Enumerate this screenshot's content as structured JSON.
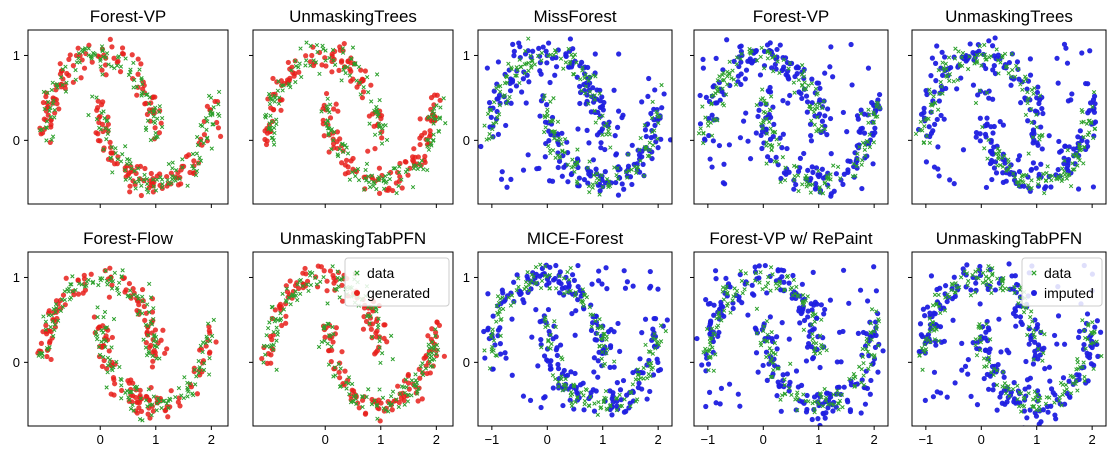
{
  "chart_data": [
    {
      "type": "scatter",
      "title": "Forest-VP",
      "group": "generation",
      "row": 0,
      "col": 0,
      "series": [
        {
          "name": "data",
          "color": "#2ca02c",
          "marker": "x"
        },
        {
          "name": "generated",
          "color": "#e8201b",
          "marker": "o"
        }
      ],
      "xlim": [
        -1.3,
        2.3
      ],
      "ylim": [
        -0.75,
        1.3
      ],
      "xticks": [
        0,
        1,
        2
      ],
      "yticks": [
        0,
        1
      ],
      "show_xticklabels": false,
      "show_yticklabels": true
    },
    {
      "type": "scatter",
      "title": "UnmaskingTrees",
      "group": "generation",
      "row": 0,
      "col": 1,
      "series": [
        {
          "name": "data",
          "color": "#2ca02c",
          "marker": "x"
        },
        {
          "name": "generated",
          "color": "#e8201b",
          "marker": "o"
        }
      ],
      "xlim": [
        -1.3,
        2.3
      ],
      "ylim": [
        -0.75,
        1.3
      ],
      "xticks": [
        0,
        1,
        2
      ],
      "yticks": [
        0,
        1
      ],
      "show_xticklabels": false,
      "show_yticklabels": false
    },
    {
      "type": "scatter",
      "title": "Forest-Flow",
      "group": "generation",
      "row": 1,
      "col": 0,
      "series": [
        {
          "name": "data",
          "color": "#2ca02c",
          "marker": "x"
        },
        {
          "name": "generated",
          "color": "#e8201b",
          "marker": "o"
        }
      ],
      "xlim": [
        -1.3,
        2.3
      ],
      "ylim": [
        -0.75,
        1.3
      ],
      "xticks": [
        0,
        1,
        2
      ],
      "yticks": [
        0,
        1
      ],
      "show_xticklabels": true,
      "show_yticklabels": true
    },
    {
      "type": "scatter",
      "title": "UnmaskingTabPFN",
      "group": "generation",
      "row": 1,
      "col": 1,
      "series": [
        {
          "name": "data",
          "color": "#2ca02c",
          "marker": "x"
        },
        {
          "name": "generated",
          "color": "#e8201b",
          "marker": "o"
        }
      ],
      "xlim": [
        -1.3,
        2.3
      ],
      "ylim": [
        -0.75,
        1.3
      ],
      "xticks": [
        0,
        1,
        2
      ],
      "yticks": [
        0,
        1
      ],
      "show_xticklabels": true,
      "show_yticklabels": false,
      "legend": {
        "placement": "top-right",
        "entries": [
          "data",
          "generated"
        ]
      }
    },
    {
      "type": "scatter",
      "title": "MissForest",
      "group": "imputation",
      "row": 0,
      "col": 0,
      "series": [
        {
          "name": "data",
          "color": "#2ca02c",
          "marker": "x"
        },
        {
          "name": "imputed",
          "color": "#1f1fe0",
          "marker": "o"
        }
      ],
      "xlim": [
        -1.25,
        2.25
      ],
      "ylim": [
        -0.75,
        1.3
      ],
      "xticks": [
        -1,
        0,
        1,
        2
      ],
      "yticks": [
        0,
        1
      ],
      "show_xticklabels": false,
      "show_yticklabels": true
    },
    {
      "type": "scatter",
      "title": "Forest-VP",
      "group": "imputation",
      "row": 0,
      "col": 1,
      "series": [
        {
          "name": "data",
          "color": "#2ca02c",
          "marker": "x"
        },
        {
          "name": "imputed",
          "color": "#1f1fe0",
          "marker": "o"
        }
      ],
      "xlim": [
        -1.25,
        2.25
      ],
      "ylim": [
        -0.75,
        1.3
      ],
      "xticks": [
        -1,
        0,
        1,
        2
      ],
      "yticks": [
        0,
        1
      ],
      "show_xticklabels": false,
      "show_yticklabels": false
    },
    {
      "type": "scatter",
      "title": "UnmaskingTrees",
      "group": "imputation",
      "row": 0,
      "col": 2,
      "series": [
        {
          "name": "data",
          "color": "#2ca02c",
          "marker": "x"
        },
        {
          "name": "imputed",
          "color": "#1f1fe0",
          "marker": "o"
        }
      ],
      "xlim": [
        -1.25,
        2.25
      ],
      "ylim": [
        -0.75,
        1.3
      ],
      "xticks": [
        -1,
        0,
        1,
        2
      ],
      "yticks": [
        0,
        1
      ],
      "show_xticklabels": false,
      "show_yticklabels": false
    },
    {
      "type": "scatter",
      "title": "MICE-Forest",
      "group": "imputation",
      "row": 1,
      "col": 0,
      "series": [
        {
          "name": "data",
          "color": "#2ca02c",
          "marker": "x"
        },
        {
          "name": "imputed",
          "color": "#1f1fe0",
          "marker": "o"
        }
      ],
      "xlim": [
        -1.25,
        2.25
      ],
      "ylim": [
        -0.75,
        1.3
      ],
      "xticks": [
        -1,
        0,
        1,
        2
      ],
      "yticks": [
        0,
        1
      ],
      "show_xticklabels": true,
      "show_yticklabels": true
    },
    {
      "type": "scatter",
      "title": "Forest-VP w/ RePaint",
      "group": "imputation",
      "row": 1,
      "col": 1,
      "series": [
        {
          "name": "data",
          "color": "#2ca02c",
          "marker": "x"
        },
        {
          "name": "imputed",
          "color": "#1f1fe0",
          "marker": "o"
        }
      ],
      "xlim": [
        -1.25,
        2.25
      ],
      "ylim": [
        -0.75,
        1.3
      ],
      "xticks": [
        -1,
        0,
        1,
        2
      ],
      "yticks": [
        0,
        1
      ],
      "show_xticklabels": true,
      "show_yticklabels": false
    },
    {
      "type": "scatter",
      "title": "UnmaskingTabPFN",
      "group": "imputation",
      "row": 1,
      "col": 2,
      "series": [
        {
          "name": "data",
          "color": "#2ca02c",
          "marker": "x"
        },
        {
          "name": "imputed",
          "color": "#1f1fe0",
          "marker": "o"
        }
      ],
      "xlim": [
        -1.25,
        2.25
      ],
      "ylim": [
        -0.75,
        1.3
      ],
      "xticks": [
        -1,
        0,
        1,
        2
      ],
      "yticks": [
        0,
        1
      ],
      "show_xticklabels": true,
      "show_yticklabels": false,
      "legend": {
        "placement": "top-right",
        "entries": [
          "data",
          "imputed"
        ]
      }
    }
  ]
}
